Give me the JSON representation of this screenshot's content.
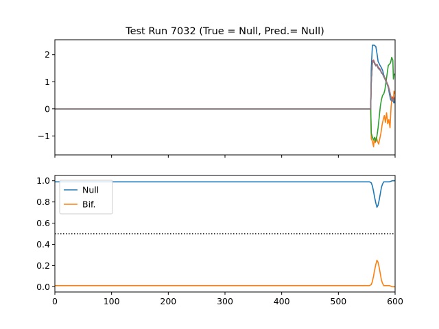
{
  "chart_data": [
    {
      "type": "line",
      "title": "Test Run 7032 (True = Null, Pred.= Null)",
      "xlabel": "",
      "ylabel": "",
      "xlim": [
        0,
        600
      ],
      "ylim": [
        -1.7,
        2.55
      ],
      "yticks": [
        -1,
        0,
        1,
        2
      ],
      "yticklabels": [
        "−1",
        "0",
        "1",
        "2"
      ],
      "xticks": [
        0,
        100,
        200,
        300,
        400,
        500,
        600
      ],
      "show_xticklabels": false,
      "series": [
        {
          "name": "series-blue",
          "color": "#1f77b4",
          "x": [
            0,
            557,
            558,
            560,
            563,
            566,
            568,
            570,
            573,
            575,
            578,
            580,
            583,
            585,
            588,
            590,
            592,
            594,
            596,
            598,
            600
          ],
          "y": [
            0,
            0,
            1.5,
            2.35,
            2.35,
            2.3,
            2.05,
            1.75,
            1.62,
            1.55,
            1.42,
            1.25,
            1.05,
            0.95,
            0.8,
            0.55,
            0.35,
            0.28,
            0.3,
            0.22,
            0.3
          ]
        },
        {
          "name": "series-orange",
          "color": "#ff7f0e",
          "x": [
            0,
            557,
            558,
            560,
            562,
            563,
            565,
            567,
            569,
            571,
            573,
            575,
            577,
            579,
            581,
            583,
            585,
            587,
            589,
            591,
            593,
            595,
            597,
            598,
            600
          ],
          "y": [
            0,
            0,
            -1.1,
            -1.2,
            -1.4,
            -1.15,
            -1.25,
            -1.05,
            -1.2,
            -1.3,
            -1.1,
            -0.9,
            -0.6,
            -0.4,
            -0.25,
            -0.5,
            -0.15,
            -0.55,
            -0.4,
            -0.7,
            0.1,
            0.45,
            0.3,
            0.65,
            0.55
          ]
        },
        {
          "name": "series-green",
          "color": "#2ca02c",
          "x": [
            0,
            557,
            558,
            560,
            562,
            564,
            566,
            568,
            570,
            572,
            574,
            576,
            578,
            580,
            582,
            584,
            586,
            588,
            590,
            592,
            594,
            596,
            597,
            598,
            600
          ],
          "y": [
            0,
            0,
            -0.9,
            -1.05,
            -1.15,
            -1.05,
            -1.2,
            -1.0,
            -0.7,
            -0.3,
            0.1,
            0.35,
            0.5,
            0.55,
            0.7,
            1.0,
            1.3,
            1.6,
            1.65,
            1.7,
            1.9,
            1.8,
            1.1,
            1.25,
            1.3
          ]
        },
        {
          "name": "series-red",
          "color": "#d62728",
          "x": [
            0,
            557,
            558,
            560,
            562,
            564,
            566,
            568,
            570,
            572,
            574,
            576,
            578,
            580,
            582,
            584,
            586,
            588,
            590,
            592,
            594,
            596,
            598,
            600
          ],
          "y": [
            0,
            0,
            1.0,
            1.75,
            1.8,
            1.7,
            1.6,
            1.65,
            1.55,
            1.5,
            1.45,
            1.35,
            1.3,
            1.2,
            1.15,
            1.05,
            0.95,
            0.85,
            0.7,
            0.5,
            0.35,
            0.4,
            0.3,
            0.45
          ]
        },
        {
          "name": "series-purple",
          "color": "#9467bd",
          "x": [
            0,
            557,
            558,
            560,
            562,
            564,
            566,
            568,
            570,
            572,
            574,
            576,
            578,
            580,
            582,
            584,
            586,
            588,
            590,
            592,
            594,
            596,
            598,
            600
          ],
          "y": [
            0,
            0,
            1.0,
            1.7,
            1.75,
            1.65,
            1.6,
            1.62,
            1.5,
            1.45,
            1.42,
            1.32,
            1.28,
            1.18,
            1.1,
            1.0,
            0.9,
            0.8,
            0.65,
            0.45,
            0.3,
            0.35,
            0.28,
            0.42
          ]
        },
        {
          "name": "series-brown",
          "color": "#8c564b",
          "x": [
            0,
            557,
            558,
            560,
            562,
            564,
            566,
            568,
            570,
            572,
            574,
            576,
            578,
            580,
            582,
            584,
            586,
            588,
            590,
            592,
            594,
            596,
            598,
            600
          ],
          "y": [
            0,
            0,
            1.0,
            1.72,
            1.78,
            1.68,
            1.58,
            1.63,
            1.52,
            1.48,
            1.43,
            1.33,
            1.29,
            1.19,
            1.12,
            1.02,
            0.92,
            0.82,
            0.68,
            0.48,
            0.32,
            0.38,
            0.29,
            0.43
          ]
        },
        {
          "name": "series-pink",
          "color": "#e377c2",
          "x": [
            0,
            557,
            558,
            560,
            562,
            564,
            566,
            568,
            570,
            572,
            574,
            576,
            578,
            580,
            582,
            584,
            586,
            588,
            590,
            592,
            594,
            596,
            598,
            600
          ],
          "y": [
            0,
            0,
            1.0,
            1.73,
            1.77,
            1.67,
            1.59,
            1.64,
            1.53,
            1.47,
            1.44,
            1.34,
            1.3,
            1.2,
            1.13,
            1.03,
            0.93,
            0.83,
            0.69,
            0.49,
            0.33,
            0.37,
            0.3,
            0.44
          ]
        },
        {
          "name": "series-gray",
          "color": "#7f7f7f",
          "x": [
            0,
            557,
            558,
            560,
            562,
            564,
            566,
            568,
            570,
            572,
            574,
            576,
            578,
            580,
            582,
            584,
            586,
            588,
            590,
            592,
            594,
            596,
            598,
            600
          ],
          "y": [
            0,
            0,
            1.0,
            1.71,
            1.76,
            1.66,
            1.6,
            1.63,
            1.51,
            1.46,
            1.43,
            1.33,
            1.29,
            1.19,
            1.11,
            1.01,
            0.91,
            0.81,
            0.66,
            0.46,
            0.31,
            0.36,
            0.29,
            0.43
          ]
        }
      ]
    },
    {
      "type": "line",
      "title": "",
      "xlabel": "",
      "ylabel": "",
      "xlim": [
        0,
        600
      ],
      "ylim": [
        -0.05,
        1.05
      ],
      "yticks": [
        0.0,
        0.2,
        0.4,
        0.6,
        0.8,
        1.0
      ],
      "yticklabels": [
        "0.0",
        "0.2",
        "0.4",
        "0.6",
        "0.8",
        "1.0"
      ],
      "xticks": [
        0,
        100,
        200,
        300,
        400,
        500,
        600
      ],
      "xticklabels": [
        "0",
        "100",
        "200",
        "300",
        "400",
        "500",
        "600"
      ],
      "threshold": 0.5,
      "legend_position": "top-left",
      "series": [
        {
          "name": "Null",
          "color": "#1f77b4",
          "x": [
            0,
            550,
            555,
            558,
            560,
            562,
            564,
            566,
            568,
            570,
            572,
            574,
            576,
            578,
            580,
            583,
            586,
            590,
            595,
            600
          ],
          "y": [
            0.99,
            0.99,
            0.99,
            0.98,
            0.95,
            0.9,
            0.84,
            0.79,
            0.75,
            0.77,
            0.82,
            0.88,
            0.94,
            0.97,
            0.99,
            0.99,
            0.99,
            0.99,
            1.0,
            1.0
          ]
        },
        {
          "name": "Bif.",
          "color": "#ff7f0e",
          "x": [
            0,
            550,
            555,
            558,
            560,
            562,
            564,
            566,
            568,
            570,
            572,
            574,
            576,
            578,
            580,
            583,
            586,
            590,
            595,
            600
          ],
          "y": [
            0.01,
            0.01,
            0.01,
            0.02,
            0.05,
            0.1,
            0.16,
            0.21,
            0.25,
            0.23,
            0.18,
            0.12,
            0.06,
            0.03,
            0.01,
            0.01,
            0.01,
            0.01,
            0.0,
            0.0
          ]
        }
      ],
      "legend": [
        "Null",
        "Bif."
      ]
    }
  ]
}
